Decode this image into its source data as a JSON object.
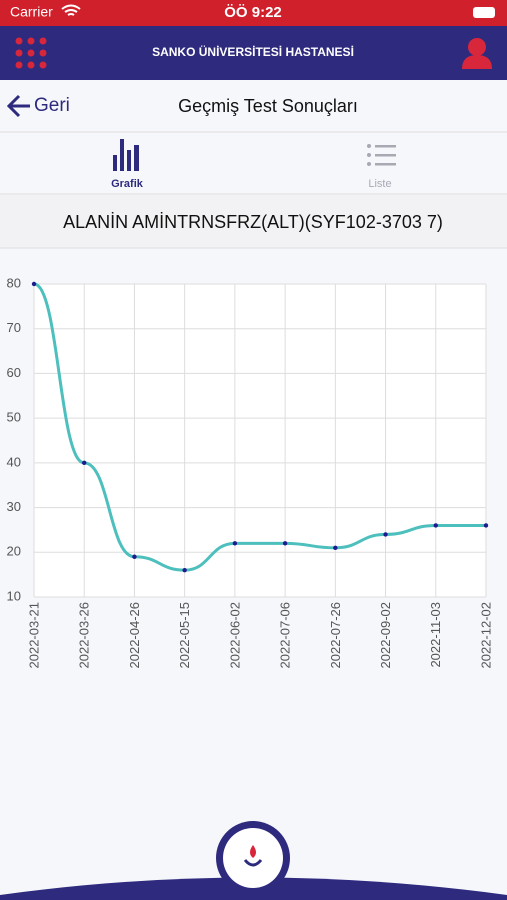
{
  "status_bar": {
    "carrier": "Carrier",
    "time": "ÖÖ 9:22"
  },
  "header": {
    "title": "SANKO ÜNİVERSİTESİ HASTANESİ"
  },
  "nav": {
    "back": "Geri",
    "title": "Geçmiş Test Sonuçları"
  },
  "tabs": [
    {
      "label": "Grafik"
    },
    {
      "label": "Liste"
    }
  ],
  "test_name": "ALANİN AMİNTRNSFRZ(ALT)(SYF102-3703 7)",
  "chart_data": {
    "type": "line",
    "categories": [
      "2022-03-21",
      "2022-03-26",
      "2022-04-26",
      "2022-05-15",
      "2022-06-02",
      "2022-07-06",
      "2022-07-26",
      "2022-09-02",
      "2022-11-03",
      "2022-12-02"
    ],
    "values": [
      80,
      40,
      19,
      16,
      22,
      22,
      21,
      24,
      26,
      26
    ],
    "color": "#4dbfbd",
    "marker_color": "#1c1c8f",
    "ylim": [
      10,
      80
    ],
    "yticks": [
      10,
      20,
      30,
      40,
      50,
      60,
      70,
      80
    ],
    "grid": true
  }
}
